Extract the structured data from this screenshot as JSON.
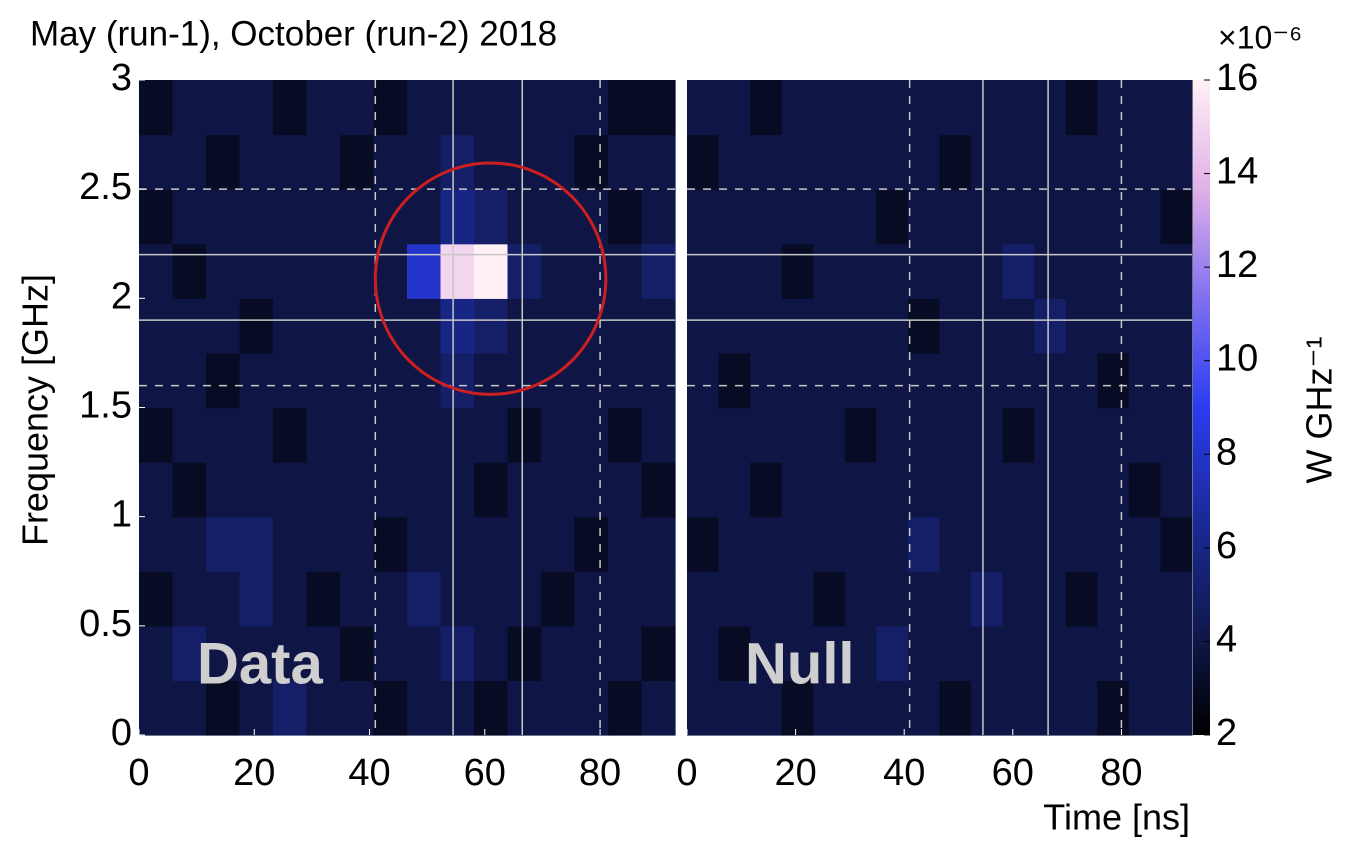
{
  "chart_data": {
    "type": "heatmap",
    "title": "May (run-1), October (run-2) 2018",
    "ylabel": "Frequency [GHz]",
    "xlabel": "Time [ns]",
    "xlim": [
      0,
      93
    ],
    "ylim": [
      0,
      3
    ],
    "xticks": [
      0,
      20,
      40,
      60,
      80
    ],
    "yticks": [
      0,
      0.5,
      1,
      1.5,
      2,
      2.5,
      3
    ],
    "colorbar": {
      "label": "W GHz⁻¹",
      "multiplier": "×10⁻⁶",
      "clim": [
        2,
        16
      ],
      "ticks": [
        2,
        4,
        6,
        8,
        10,
        12,
        14,
        16
      ],
      "colors": [
        "#000000",
        "#111a52",
        "#1a2a9a",
        "#2a3cf0",
        "#8070f0",
        "#e0b0e8",
        "#fff0f5"
      ]
    },
    "guides": {
      "dashed_x": [
        41,
        80
      ],
      "solid_x": [
        54.5,
        66.5
      ],
      "dashed_y": [
        1.6,
        2.5
      ],
      "solid_y": [
        1.9,
        2.2
      ]
    },
    "circle": {
      "x": 61,
      "y": 2.09,
      "rx": 20,
      "ry": 0.53,
      "color": "#cc1f1f"
    },
    "panels": [
      {
        "label": "Data",
        "z": [
          [
            4,
            4,
            3,
            4,
            5,
            4,
            4,
            3,
            4,
            4,
            3,
            4,
            4,
            4,
            3,
            4
          ],
          [
            4,
            5,
            4,
            4,
            4,
            4,
            3,
            4,
            4,
            5,
            4,
            3,
            4,
            4,
            4,
            3
          ],
          [
            3,
            4,
            4,
            5,
            4,
            3,
            4,
            4,
            5,
            4,
            4,
            4,
            3,
            4,
            4,
            4
          ],
          [
            4,
            4,
            5,
            5,
            4,
            4,
            4,
            3,
            4,
            4,
            4,
            4,
            4,
            3,
            4,
            4
          ],
          [
            4,
            3,
            4,
            4,
            4,
            4,
            4,
            4,
            4,
            4,
            3,
            4,
            4,
            4,
            4,
            3
          ],
          [
            3,
            4,
            4,
            4,
            3,
            4,
            4,
            4,
            4,
            4,
            4,
            3,
            4,
            4,
            3,
            4
          ],
          [
            4,
            4,
            3,
            4,
            4,
            4,
            4,
            4,
            4,
            5,
            4,
            4,
            4,
            4,
            4,
            4
          ],
          [
            4,
            4,
            4,
            3,
            4,
            4,
            4,
            4,
            4,
            6,
            5,
            4,
            4,
            4,
            4,
            4
          ],
          [
            4,
            3,
            4,
            4,
            4,
            4,
            4,
            4,
            8,
            15,
            16,
            5,
            4,
            4,
            4,
            5
          ],
          [
            3,
            4,
            4,
            4,
            4,
            4,
            4,
            4,
            4,
            6,
            5,
            4,
            4,
            4,
            3,
            4
          ],
          [
            4,
            4,
            3,
            4,
            4,
            4,
            3,
            4,
            4,
            5,
            4,
            4,
            4,
            3,
            4,
            4
          ],
          [
            3,
            4,
            4,
            4,
            3,
            4,
            4,
            3,
            4,
            4,
            4,
            4,
            4,
            4,
            3,
            3
          ]
        ]
      },
      {
        "label": "Null",
        "z": [
          [
            4,
            4,
            4,
            3,
            4,
            4,
            4,
            4,
            3,
            4,
            4,
            4,
            4,
            3,
            4,
            4
          ],
          [
            4,
            3,
            4,
            4,
            4,
            4,
            5,
            4,
            4,
            4,
            4,
            4,
            4,
            4,
            4,
            4
          ],
          [
            4,
            4,
            4,
            4,
            3,
            4,
            4,
            4,
            4,
            5,
            4,
            4,
            3,
            4,
            4,
            4
          ],
          [
            3,
            4,
            4,
            4,
            4,
            4,
            4,
            5,
            4,
            4,
            4,
            4,
            4,
            4,
            4,
            3
          ],
          [
            4,
            4,
            3,
            4,
            4,
            4,
            4,
            4,
            4,
            4,
            4,
            4,
            4,
            4,
            3,
            4
          ],
          [
            4,
            4,
            4,
            4,
            4,
            3,
            4,
            4,
            4,
            4,
            3,
            4,
            4,
            4,
            4,
            4
          ],
          [
            4,
            3,
            4,
            4,
            4,
            4,
            4,
            4,
            4,
            4,
            4,
            4,
            4,
            3,
            4,
            4
          ],
          [
            4,
            4,
            4,
            4,
            4,
            4,
            4,
            3,
            4,
            4,
            4,
            5,
            4,
            4,
            4,
            4
          ],
          [
            4,
            4,
            4,
            3,
            4,
            4,
            4,
            4,
            4,
            4,
            5,
            4,
            4,
            4,
            4,
            4
          ],
          [
            4,
            4,
            4,
            4,
            4,
            4,
            3,
            4,
            4,
            4,
            4,
            4,
            4,
            4,
            4,
            3
          ],
          [
            3,
            4,
            4,
            4,
            4,
            4,
            4,
            4,
            3,
            4,
            4,
            4,
            4,
            4,
            4,
            4
          ],
          [
            4,
            4,
            3,
            4,
            4,
            4,
            4,
            4,
            4,
            4,
            4,
            4,
            3,
            4,
            4,
            4
          ]
        ]
      }
    ]
  }
}
